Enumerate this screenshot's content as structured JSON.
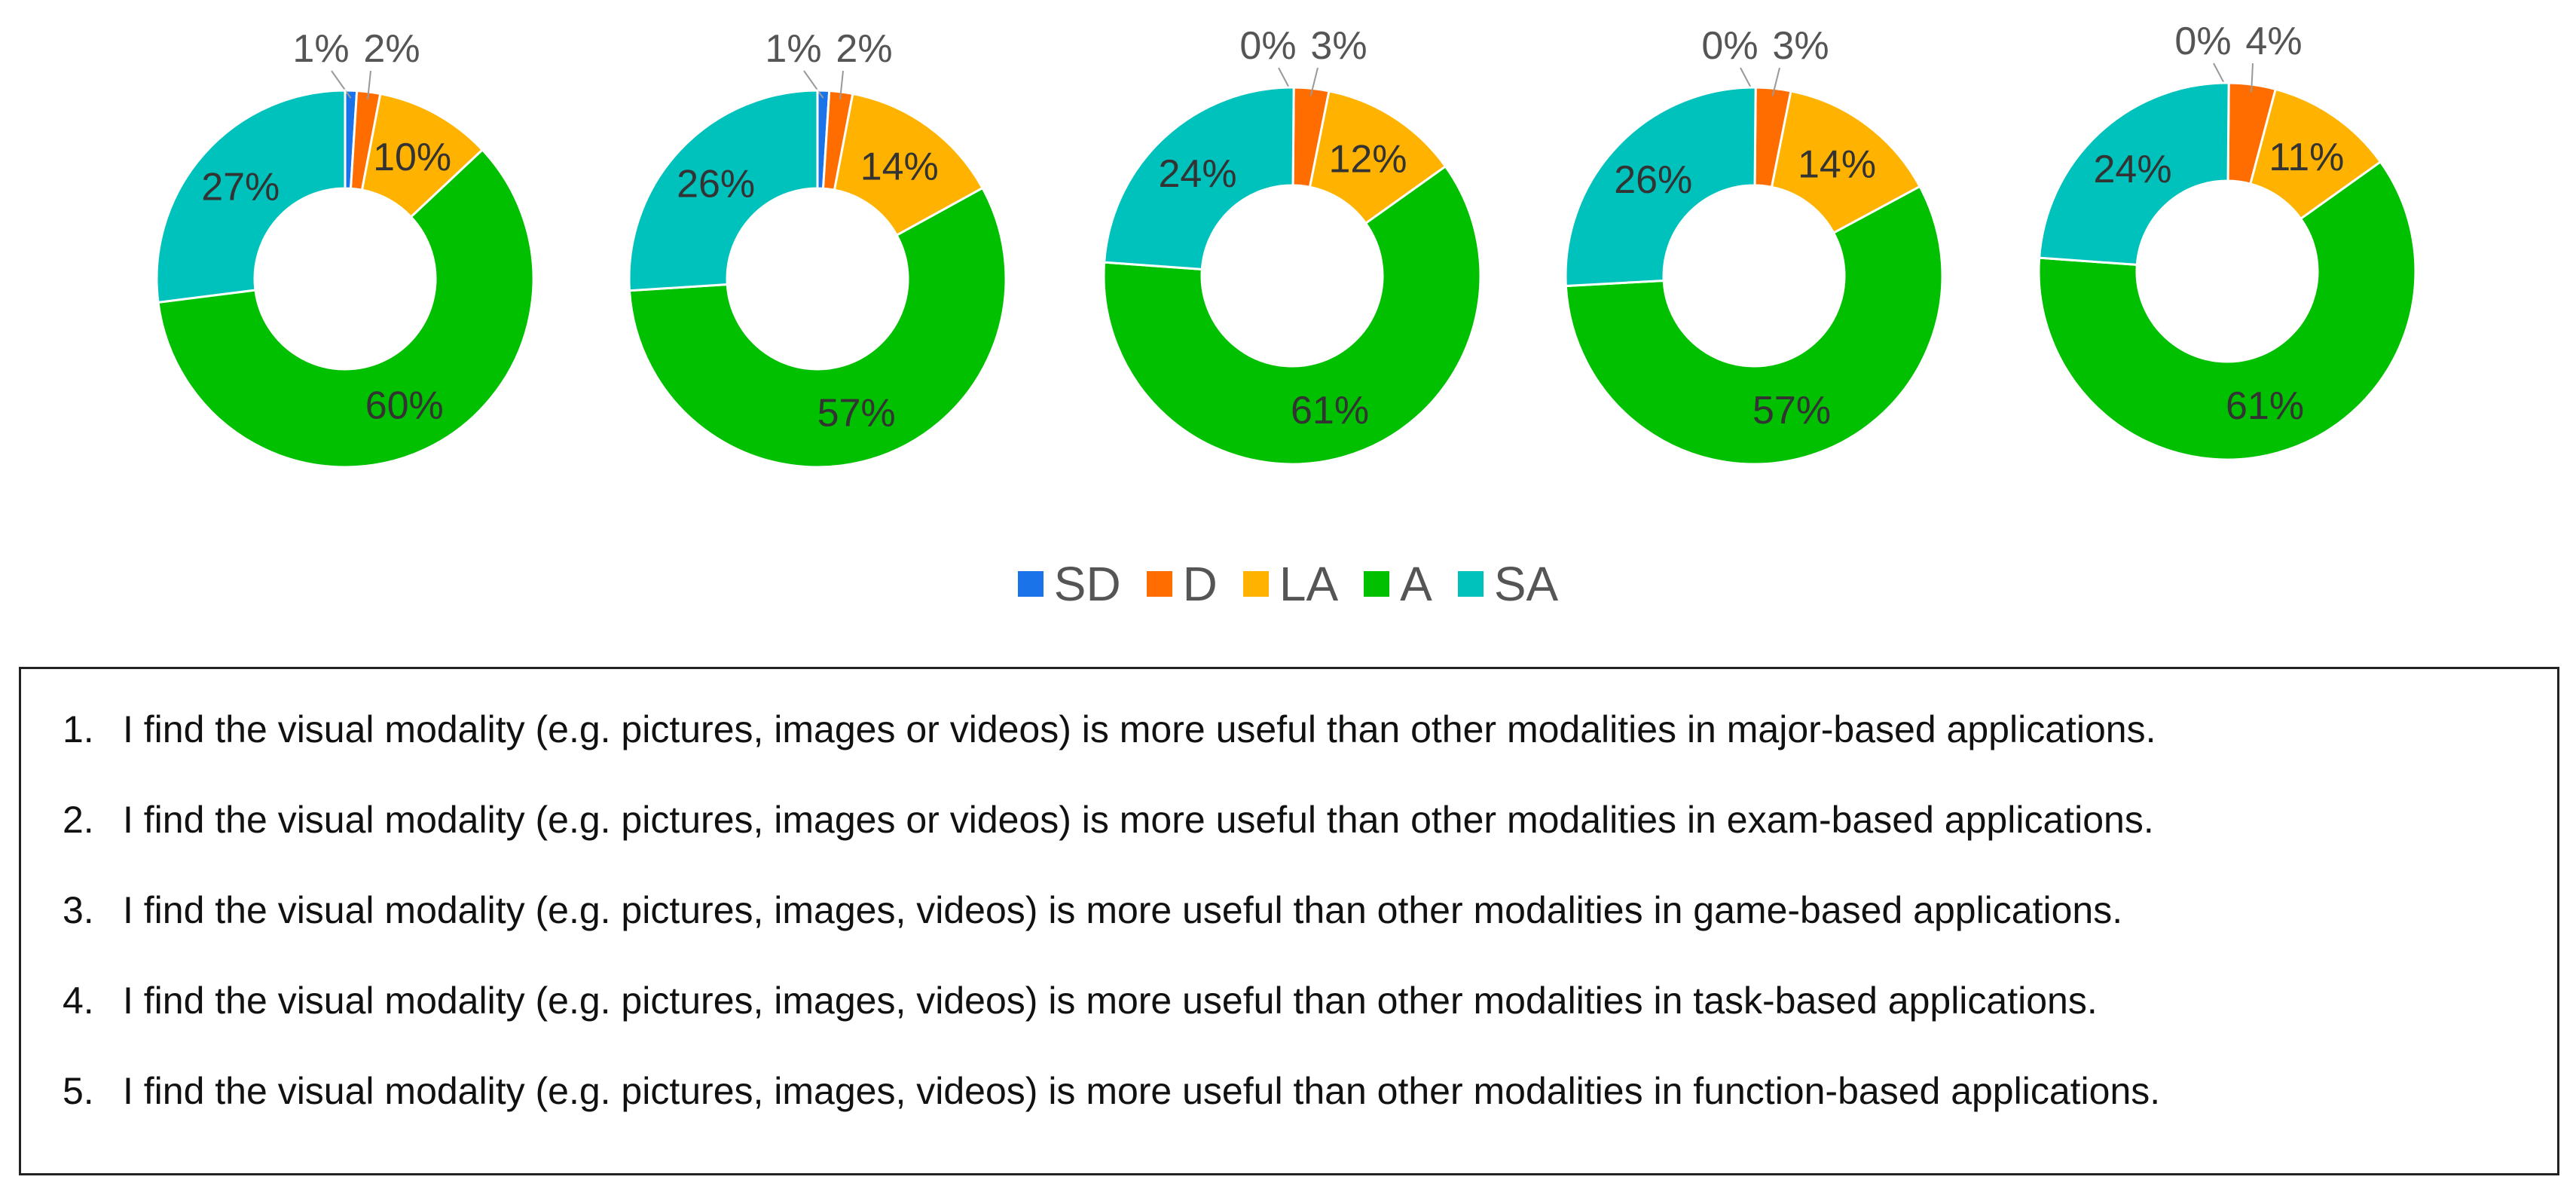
{
  "chart_data": {
    "type": "pie",
    "variant": "donut",
    "legend_position": "bottom",
    "legend": [
      "SD",
      "D",
      "LA",
      "A",
      "SA"
    ],
    "colors": {
      "SD": "#1a73e8",
      "D": "#ff6d00",
      "LA": "#ffb300",
      "A": "#00c000",
      "SA": "#00c2bc"
    },
    "charts": [
      {
        "values": [
          1,
          2,
          10,
          60,
          27
        ],
        "labels": [
          "1%",
          "2%",
          "10%",
          "60%",
          "27%"
        ]
      },
      {
        "values": [
          1,
          2,
          14,
          57,
          26
        ],
        "labels": [
          "1%",
          "2%",
          "14%",
          "57%",
          "26%"
        ]
      },
      {
        "values": [
          0,
          3,
          12,
          61,
          24
        ],
        "labels": [
          "0%",
          "3%",
          "12%",
          "61%",
          "24%"
        ]
      },
      {
        "values": [
          0,
          3,
          14,
          57,
          26
        ],
        "labels": [
          "0%",
          "3%",
          "14%",
          "57%",
          "26%"
        ]
      },
      {
        "values": [
          0,
          4,
          11,
          61,
          24
        ],
        "labels": [
          "0%",
          "4%",
          "11%",
          "61%",
          "24%"
        ]
      }
    ]
  },
  "statements": [
    {
      "num": "1.",
      "text": "I find the visual modality (e.g. pictures, images or videos) is more useful than other modalities in major-based applications."
    },
    {
      "num": "2.",
      "text": "I find the visual modality (e.g. pictures, images or videos) is more useful than other modalities in exam-based applications."
    },
    {
      "num": "3.",
      "text": "I find the visual modality (e.g. pictures, images, videos) is more useful than other modalities in game-based applications."
    },
    {
      "num": "4.",
      "text": "I find the visual modality (e.g. pictures, images, videos) is more useful than other modalities in task-based applications."
    },
    {
      "num": "5.",
      "text": "I find the visual modality (e.g. pictures, images, videos) is more useful than other modalities in function-based applications."
    }
  ]
}
